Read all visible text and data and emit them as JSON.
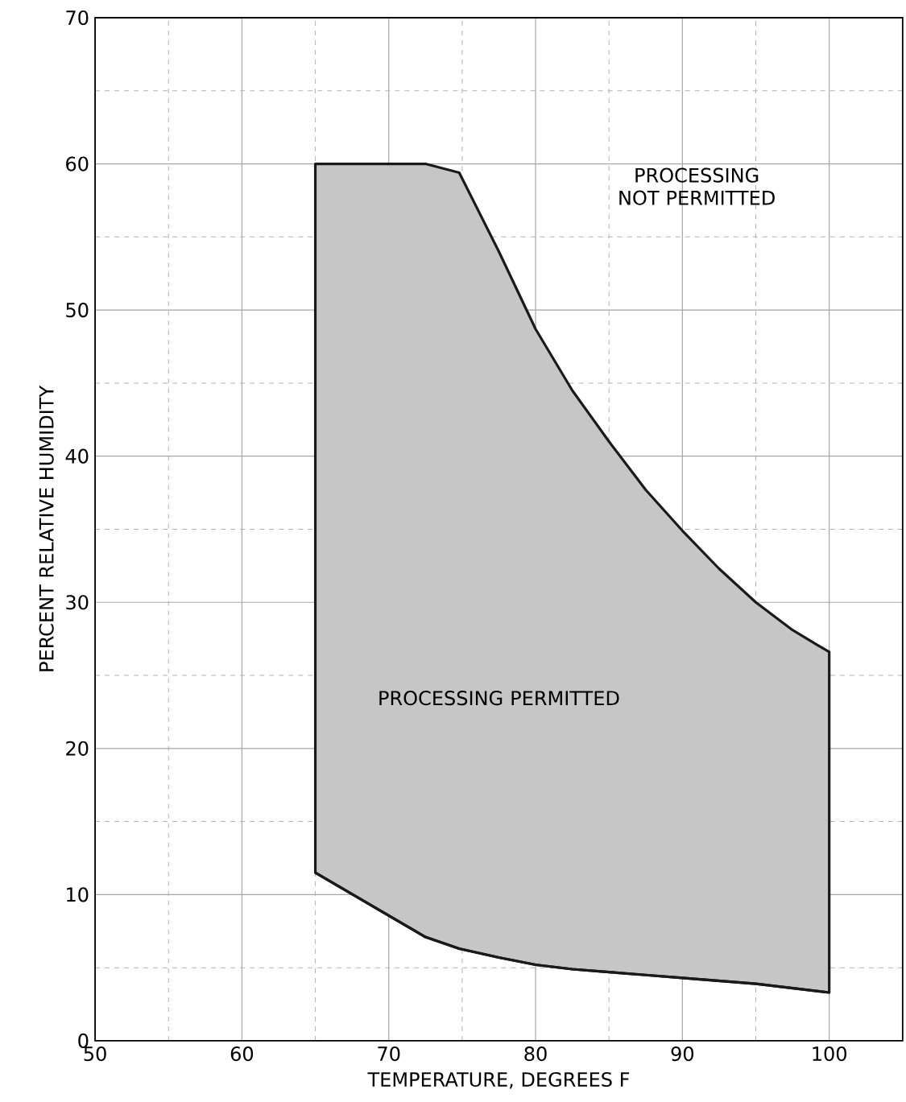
{
  "chart_data": {
    "type": "area",
    "xlabel": "TEMPERATURE, DEGREES F",
    "ylabel": "PERCENT RELATIVE HUMIDITY",
    "xlim": [
      50,
      105
    ],
    "ylim": [
      0,
      70
    ],
    "xticks": [
      50,
      60,
      70,
      80,
      90,
      100
    ],
    "yticks": [
      0,
      10,
      20,
      30,
      40,
      50,
      60,
      70
    ],
    "grid": true,
    "x": [
      65,
      72.5,
      74.8,
      77.5,
      80,
      82.5,
      85,
      87.5,
      90,
      92.5,
      95,
      97.5,
      100
    ],
    "series": [
      {
        "type": "line",
        "color": "#1a1a1a",
        "values": [
          11.5,
          7.1,
          6.3,
          5.7,
          5.2,
          4.9,
          4.7,
          4.5,
          4.3,
          4.1,
          3.9,
          3.6,
          3.3
        ]
      },
      {
        "color": "#1a1a1a",
        "values": [
          60,
          60,
          59.4,
          54,
          48.7,
          44.5,
          41,
          37.7,
          34.9,
          32.3,
          30,
          28.1,
          26.6
        ]
      }
    ],
    "annotations": [
      "PROCESSING PERMITTED",
      "PROCESSING NOT PERMITTED"
    ]
  }
}
